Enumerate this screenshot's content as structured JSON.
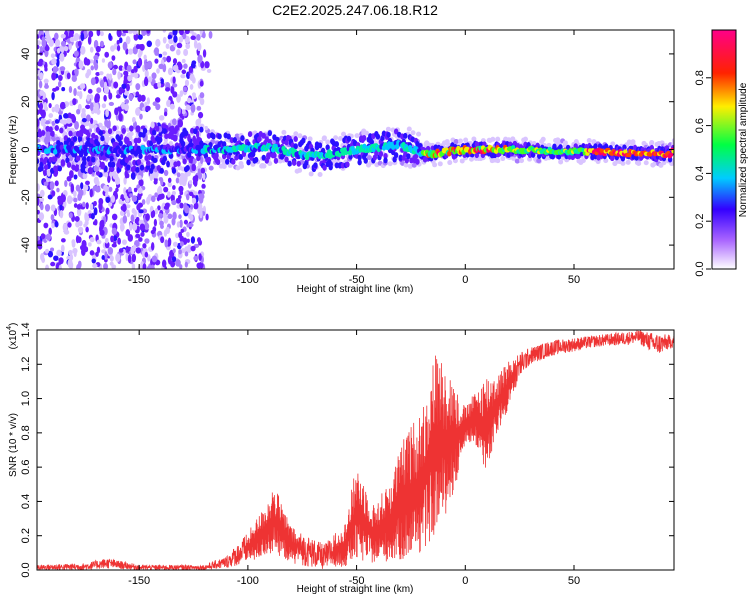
{
  "title": "C2E2.2025.247.06.18.R12",
  "chart_data": [
    {
      "type": "heatmap",
      "name": "spectrogram",
      "xlabel": "Height of straight line (km)",
      "ylabel": "Frequency (Hz)",
      "xlim": [
        -197,
        96
      ],
      "ylim": [
        -50,
        50
      ],
      "xticks": [
        -150,
        -100,
        -50,
        0,
        50
      ],
      "yticks": [
        -40,
        -20,
        0,
        20,
        40
      ],
      "colorbar": {
        "label": "Normalized spectral amplitude",
        "range": [
          0.0,
          1.0
        ],
        "ticks": [
          0.0,
          0.2,
          0.4,
          0.6,
          0.8
        ],
        "tick_labels": [
          "0.0",
          "0.2",
          "0.4",
          "0.6",
          "0.8"
        ],
        "colors": [
          "#ffffff",
          "#7700ff",
          "#0000ff",
          "#00ffff",
          "#00ff00",
          "#ffff00",
          "#ff0000",
          "#ff0088"
        ]
      },
      "ridge_center_hz": [
        {
          "x": -195,
          "y": 0
        },
        {
          "x": -150,
          "y": 0
        },
        {
          "x": -110,
          "y": 0
        },
        {
          "x": -90,
          "y": 1
        },
        {
          "x": -70,
          "y": -3
        },
        {
          "x": -50,
          "y": 0
        },
        {
          "x": -30,
          "y": 2
        },
        {
          "x": -18,
          "y": -2
        },
        {
          "x": 0,
          "y": 0
        },
        {
          "x": 20,
          "y": 0
        },
        {
          "x": 60,
          "y": -1
        },
        {
          "x": 95,
          "y": -2
        }
      ]
    },
    {
      "type": "line",
      "name": "snr",
      "xlabel": "Height of straight line (km)",
      "ylabel": "SNR (10 * v/v)",
      "scale_label": "(x10",
      "scale_exponent": "4",
      "xlim": [
        -197,
        96
      ],
      "ylim": [
        0.0,
        1.4
      ],
      "xticks": [
        -150,
        -100,
        -50,
        0,
        50
      ],
      "yticks": [
        0.0,
        0.2,
        0.4,
        0.6,
        0.8,
        1.0,
        1.2,
        1.4
      ],
      "ytick_labels": [
        "0.0",
        "0.2",
        "0.4",
        "0.6",
        "0.8",
        "1.0",
        "1.2",
        "1.4"
      ],
      "color": "#ee3333",
      "envelope": [
        {
          "x": -197,
          "lo": 0.0,
          "hi": 0.03
        },
        {
          "x": -175,
          "lo": 0.0,
          "hi": 0.04
        },
        {
          "x": -165,
          "lo": 0.01,
          "hi": 0.07
        },
        {
          "x": -150,
          "lo": 0.0,
          "hi": 0.03
        },
        {
          "x": -120,
          "lo": 0.0,
          "hi": 0.03
        },
        {
          "x": -110,
          "lo": 0.01,
          "hi": 0.08
        },
        {
          "x": -100,
          "lo": 0.04,
          "hi": 0.22
        },
        {
          "x": -92,
          "lo": 0.08,
          "hi": 0.38
        },
        {
          "x": -88,
          "lo": 0.1,
          "hi": 0.5
        },
        {
          "x": -80,
          "lo": 0.04,
          "hi": 0.25
        },
        {
          "x": -65,
          "lo": 0.0,
          "hi": 0.15
        },
        {
          "x": -55,
          "lo": 0.02,
          "hi": 0.28
        },
        {
          "x": -50,
          "lo": 0.05,
          "hi": 0.63
        },
        {
          "x": -42,
          "lo": 0.04,
          "hi": 0.38
        },
        {
          "x": -35,
          "lo": 0.05,
          "hi": 0.52
        },
        {
          "x": -28,
          "lo": 0.05,
          "hi": 0.78
        },
        {
          "x": -20,
          "lo": 0.1,
          "hi": 0.95
        },
        {
          "x": -14,
          "lo": 0.2,
          "hi": 1.28
        },
        {
          "x": -8,
          "lo": 0.35,
          "hi": 1.2
        },
        {
          "x": -4,
          "lo": 0.5,
          "hi": 1.05
        },
        {
          "x": 0,
          "lo": 0.75,
          "hi": 0.95
        },
        {
          "x": 5,
          "lo": 0.72,
          "hi": 1.05
        },
        {
          "x": 10,
          "lo": 0.55,
          "hi": 1.15
        },
        {
          "x": 15,
          "lo": 0.8,
          "hi": 1.15
        },
        {
          "x": 20,
          "lo": 0.95,
          "hi": 1.22
        },
        {
          "x": 25,
          "lo": 1.12,
          "hi": 1.27
        },
        {
          "x": 30,
          "lo": 1.2,
          "hi": 1.3
        },
        {
          "x": 40,
          "lo": 1.25,
          "hi": 1.34
        },
        {
          "x": 60,
          "lo": 1.3,
          "hi": 1.37
        },
        {
          "x": 80,
          "lo": 1.32,
          "hi": 1.4
        },
        {
          "x": 88,
          "lo": 1.25,
          "hi": 1.38
        },
        {
          "x": 96,
          "lo": 1.3,
          "hi": 1.37
        }
      ]
    }
  ]
}
